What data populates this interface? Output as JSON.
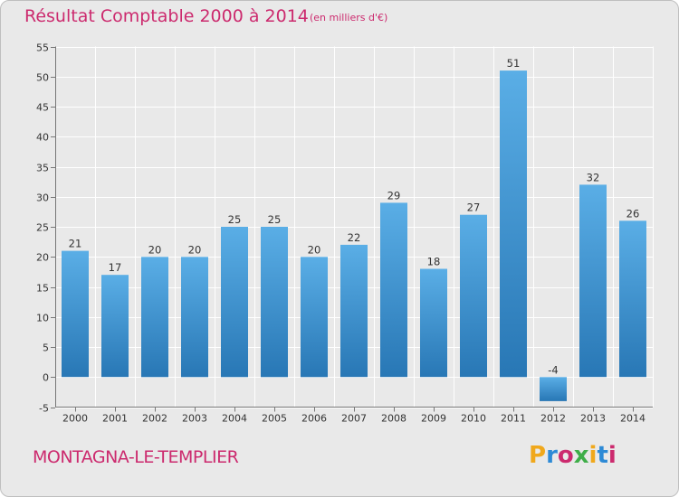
{
  "title": "Résultat Comptable 2000 à 2014",
  "subtitle": "(en milliers d'€)",
  "commune": "MONTAGNA-LE-TEMPLIER",
  "brand": "Proxiti",
  "colors": {
    "background": "#e9e9e9",
    "accent": "#cc2a6e",
    "bar_top": "#5aaee6",
    "bar_bottom": "#2877b5",
    "grid": "#ffffff"
  },
  "chart_data": {
    "type": "bar",
    "categories": [
      "2000",
      "2001",
      "2002",
      "2003",
      "2004",
      "2005",
      "2006",
      "2007",
      "2008",
      "2009",
      "2010",
      "2011",
      "2012",
      "2013",
      "2014"
    ],
    "values": [
      21,
      17,
      20,
      20,
      25,
      25,
      20,
      22,
      29,
      18,
      27,
      51,
      -4,
      32,
      26
    ],
    "data_labels": [
      "21",
      "17",
      "20",
      "20",
      "25",
      "25",
      "20",
      "22",
      "29",
      "18",
      "27",
      "51",
      "-4",
      "32",
      "26"
    ],
    "ylim": [
      -5,
      55
    ],
    "yticks": [
      -5,
      0,
      5,
      10,
      15,
      20,
      25,
      30,
      35,
      40,
      45,
      50,
      55
    ],
    "grid": true,
    "xlabel": "",
    "ylabel": ""
  }
}
